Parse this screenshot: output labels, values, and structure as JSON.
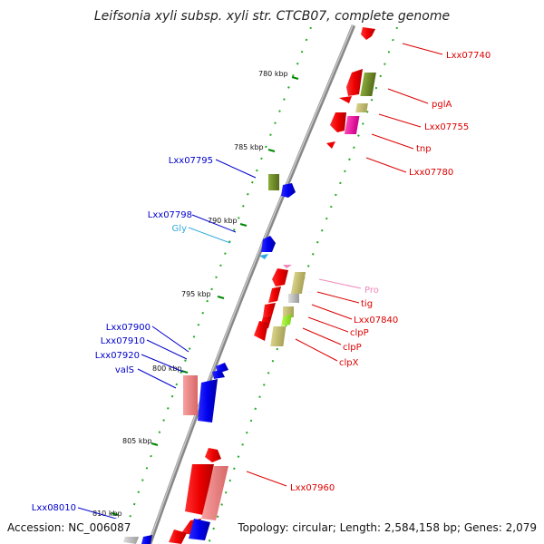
{
  "title": "Leifsonia xyli subsp. xyli str. CTCB07, complete genome",
  "accession": "Accession: NC_006087",
  "summary": "Topology: circular; Length: 2,584,158 bp; Genes: 2,079",
  "ticks": [
    "780 kbp",
    "785 kbp",
    "790 kbp",
    "795 kbp",
    "800 kbp",
    "805 kbp",
    "810 kbp"
  ],
  "labels": [
    {
      "text": "Lxx07740",
      "color": "#dd0000"
    },
    {
      "text": "pglA",
      "color": "#dd0000"
    },
    {
      "text": "Lxx07755",
      "color": "#dd0000"
    },
    {
      "text": "tnp",
      "color": "#dd0000"
    },
    {
      "text": "Lxx07780",
      "color": "#dd0000"
    },
    {
      "text": "Lxx07795",
      "color": "#0000cc"
    },
    {
      "text": "Lxx07798",
      "color": "#0000cc"
    },
    {
      "text": "Gly",
      "color": "#33aadd"
    },
    {
      "text": "Pro",
      "color": "#ee88bb"
    },
    {
      "text": "tig",
      "color": "#dd0000"
    },
    {
      "text": "Lxx07840",
      "color": "#dd0000"
    },
    {
      "text": "clpP",
      "color": "#dd0000"
    },
    {
      "text": "clpP",
      "color": "#dd0000"
    },
    {
      "text": "clpX",
      "color": "#dd0000"
    },
    {
      "text": "Lxx07900",
      "color": "#0000cc"
    },
    {
      "text": "Lxx07910",
      "color": "#0000cc"
    },
    {
      "text": "Lxx07920",
      "color": "#0000cc"
    },
    {
      "text": "valS",
      "color": "#0000cc"
    },
    {
      "text": "Lxx07960",
      "color": "#dd0000"
    },
    {
      "text": "Lxx08010",
      "color": "#0000cc"
    }
  ],
  "colors": {
    "backbone": "#888888",
    "tick": "#008800",
    "forward_cds": "#ee0000",
    "reverse_cds": "#0000ee",
    "olive": "#6b8e23",
    "khaki": "#bdb76b",
    "salmon": "#f08080",
    "magenta": "#ee1199",
    "lime": "#99ee22",
    "grey": "#bbbbbb"
  }
}
